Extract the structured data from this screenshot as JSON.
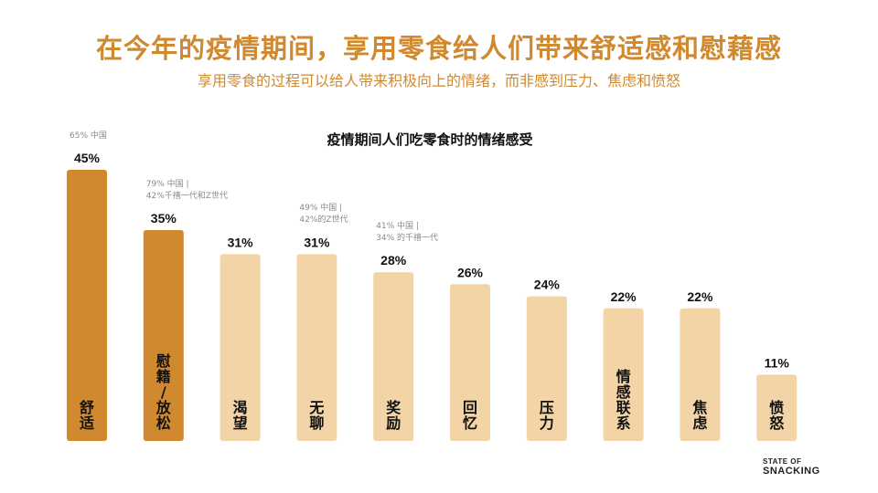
{
  "header": {
    "title": "在今年的疫情期间，享用零食给人们带来舒适感和慰藉感",
    "subtitle": "享用零食的过程可以给人带来积极向上的情绪，而非感到压力、焦虑和愤怒"
  },
  "chart_data": {
    "type": "bar",
    "title": "疫情期间人们吃零食时的情绪感受",
    "xlabel": "",
    "ylabel": "",
    "ylim": [
      0,
      100
    ],
    "categories": [
      "舒适",
      "慰藉/放松",
      "渴望",
      "无聊",
      "奖励",
      "回忆",
      "压力",
      "情感联系",
      "焦虑",
      "愤怒"
    ],
    "category_display": [
      [
        "舒",
        "适"
      ],
      [
        "慰",
        "籍",
        "/",
        "放",
        "松"
      ],
      [
        "渴",
        "望"
      ],
      [
        "无",
        "聊"
      ],
      [
        "奖",
        "励"
      ],
      [
        "回",
        "忆"
      ],
      [
        "压",
        "力"
      ],
      [
        "情",
        "感",
        "联",
        "系"
      ],
      [
        "焦",
        "虑"
      ],
      [
        "愤",
        "怒"
      ]
    ],
    "values": [
      45,
      35,
      31,
      31,
      28,
      26,
      24,
      22,
      22,
      11
    ],
    "value_labels": [
      "45%",
      "35%",
      "31%",
      "31%",
      "28%",
      "26%",
      "24%",
      "22%",
      "22%",
      "11%"
    ],
    "highlight": [
      true,
      true,
      false,
      false,
      false,
      false,
      false,
      false,
      false,
      false
    ],
    "annotations": [
      {
        "index": 0,
        "lines": [
          "65% 中国"
        ]
      },
      {
        "index": 1,
        "lines": [
          "79% 中国 |",
          "42%千禧一代和Z世代"
        ]
      },
      {
        "index": 3,
        "lines": [
          "49% 中国 |",
          "42%的Z世代"
        ]
      },
      {
        "index": 4,
        "lines": [
          "41% 中国 |",
          "34% 的千禧一代"
        ]
      }
    ],
    "colors": {
      "highlight": "#d0892f",
      "normal": "#f2d4a6"
    }
  },
  "brand": {
    "line1": "STATE OF",
    "line2": "SNACKING"
  }
}
